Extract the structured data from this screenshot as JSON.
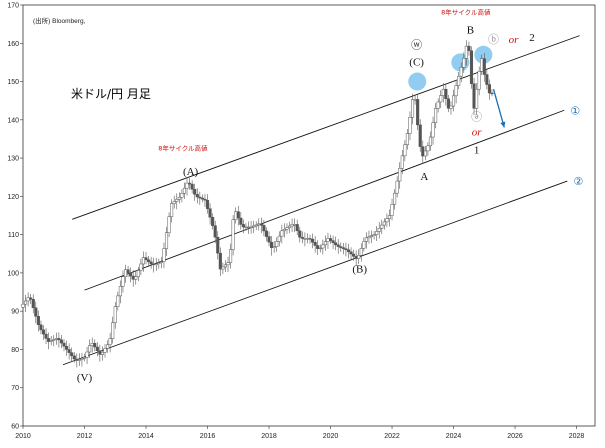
{
  "chart_data": {
    "type": "candlestick",
    "source": "(出所) Bloomberg,",
    "title": "米ドル/円 月足",
    "x_ticks": [
      "2010",
      "2012",
      "2014",
      "2016",
      "2018",
      "2020",
      "2022",
      "2024",
      "2026",
      "2028"
    ],
    "y_ticks": [
      60,
      70,
      80,
      90,
      100,
      110,
      120,
      130,
      140,
      150,
      160,
      170
    ],
    "xlim": [
      2010,
      2028.6
    ],
    "ylim": [
      60,
      170
    ],
    "price_path": [
      [
        2010.0,
        91
      ],
      [
        2010.3,
        94
      ],
      [
        2010.6,
        86
      ],
      [
        2010.9,
        82
      ],
      [
        2011.2,
        83
      ],
      [
        2011.5,
        80
      ],
      [
        2011.8,
        77
      ],
      [
        2012.1,
        78
      ],
      [
        2012.3,
        82
      ],
      [
        2012.6,
        78.5
      ],
      [
        2012.9,
        82
      ],
      [
        2013.1,
        92
      ],
      [
        2013.4,
        101
      ],
      [
        2013.7,
        98
      ],
      [
        2014.0,
        104
      ],
      [
        2014.3,
        102
      ],
      [
        2014.6,
        103
      ],
      [
        2014.9,
        118
      ],
      [
        2015.2,
        120
      ],
      [
        2015.45,
        124
      ],
      [
        2015.7,
        120
      ],
      [
        2016.0,
        119
      ],
      [
        2016.3,
        111
      ],
      [
        2016.5,
        101
      ],
      [
        2016.8,
        103
      ],
      [
        2016.95,
        117
      ],
      [
        2017.2,
        112
      ],
      [
        2017.5,
        112
      ],
      [
        2017.8,
        113
      ],
      [
        2018.2,
        106
      ],
      [
        2018.5,
        111
      ],
      [
        2018.9,
        113
      ],
      [
        2019.1,
        109
      ],
      [
        2019.4,
        109
      ],
      [
        2019.7,
        106
      ],
      [
        2020.0,
        109
      ],
      [
        2020.3,
        107
      ],
      [
        2020.6,
        106
      ],
      [
        2020.95,
        103.5
      ],
      [
        2021.2,
        109
      ],
      [
        2021.5,
        110
      ],
      [
        2021.8,
        113
      ],
      [
        2022.0,
        115
      ],
      [
        2022.2,
        122
      ],
      [
        2022.4,
        130
      ],
      [
        2022.6,
        137
      ],
      [
        2022.8,
        148
      ],
      [
        2022.95,
        136
      ],
      [
        2023.05,
        130
      ],
      [
        2023.3,
        134
      ],
      [
        2023.5,
        143
      ],
      [
        2023.75,
        148
      ],
      [
        2023.95,
        142
      ],
      [
        2024.2,
        150
      ],
      [
        2024.45,
        157
      ],
      [
        2024.55,
        161.5
      ],
      [
        2024.7,
        146
      ],
      [
        2024.75,
        143
      ],
      [
        2024.9,
        152
      ],
      [
        2025.0,
        156
      ],
      [
        2025.1,
        151
      ],
      [
        2025.25,
        147
      ]
    ],
    "channel_lines": [
      {
        "from": [
          2011.6,
          114
        ],
        "to": [
          2028.1,
          162
        ]
      },
      {
        "from": [
          2012.0,
          95.5
        ],
        "to": [
          2027.6,
          142.5
        ]
      },
      {
        "from": [
          2011.3,
          76
        ],
        "to": [
          2027.7,
          124
        ]
      }
    ],
    "channel_labels": [
      "①",
      "②"
    ],
    "wave_labels": [
      "(V)",
      "(A)",
      "(B)",
      "(C)",
      "A",
      "B",
      "1",
      "2",
      "ⓦ",
      "ⓐ",
      "ⓑ",
      "or"
    ],
    "cycle_notes": [
      "8年サイクル高値"
    ],
    "highlight_circles": [
      {
        "x": 2022.82,
        "y": 150
      },
      {
        "x": 2024.22,
        "y": 155
      },
      {
        "x": 2024.97,
        "y": 157
      }
    ],
    "forecast_arrow": {
      "from": [
        2025.3,
        148
      ],
      "to": [
        2025.65,
        138
      ]
    },
    "colors": {
      "axis": "#333333",
      "candle": "#555555",
      "line": "#111111",
      "accent": "#1b6fb3",
      "note": "#d01010",
      "highlight": "#7fc4ee"
    }
  }
}
